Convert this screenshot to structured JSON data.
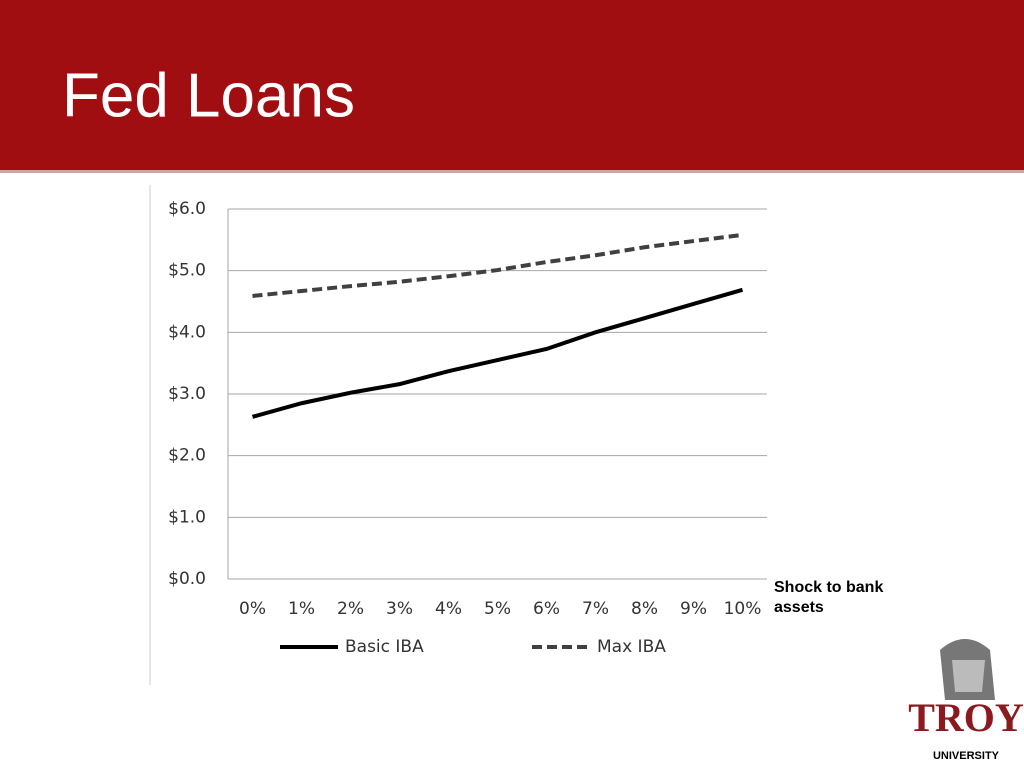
{
  "header": {
    "title": "Fed Loans"
  },
  "chart_data": {
    "type": "line",
    "categories": [
      "0%",
      "1%",
      "2%",
      "3%",
      "4%",
      "5%",
      "6%",
      "7%",
      "8%",
      "9%",
      "10%"
    ],
    "series": [
      {
        "name": "Basic IBA",
        "color": "#000000",
        "style": "solid",
        "values": [
          2.63,
          2.85,
          3.02,
          3.16,
          3.37,
          3.55,
          3.73,
          4.0,
          4.23,
          4.46,
          4.69
        ]
      },
      {
        "name": "Max IBA",
        "color": "#404040",
        "style": "dashed",
        "values": [
          4.59,
          4.67,
          4.75,
          4.82,
          4.91,
          5.01,
          5.14,
          5.25,
          5.38,
          5.48,
          5.58
        ]
      }
    ],
    "ylim": [
      0,
      6
    ],
    "yticks": [
      {
        "value": 0,
        "label": "$0.0"
      },
      {
        "value": 1,
        "label": "$1.0"
      },
      {
        "value": 2,
        "label": "$2.0"
      },
      {
        "value": 3,
        "label": "$3.0"
      },
      {
        "value": 4,
        "label": "$4.0"
      },
      {
        "value": 5,
        "label": "$5.0"
      },
      {
        "value": 6,
        "label": "$6.0"
      }
    ],
    "grid": true,
    "legend": "bottom",
    "annotation": "Shock to bank assets"
  },
  "logo": {
    "name": "TROY",
    "subtitle": "UNIVERSITY"
  }
}
